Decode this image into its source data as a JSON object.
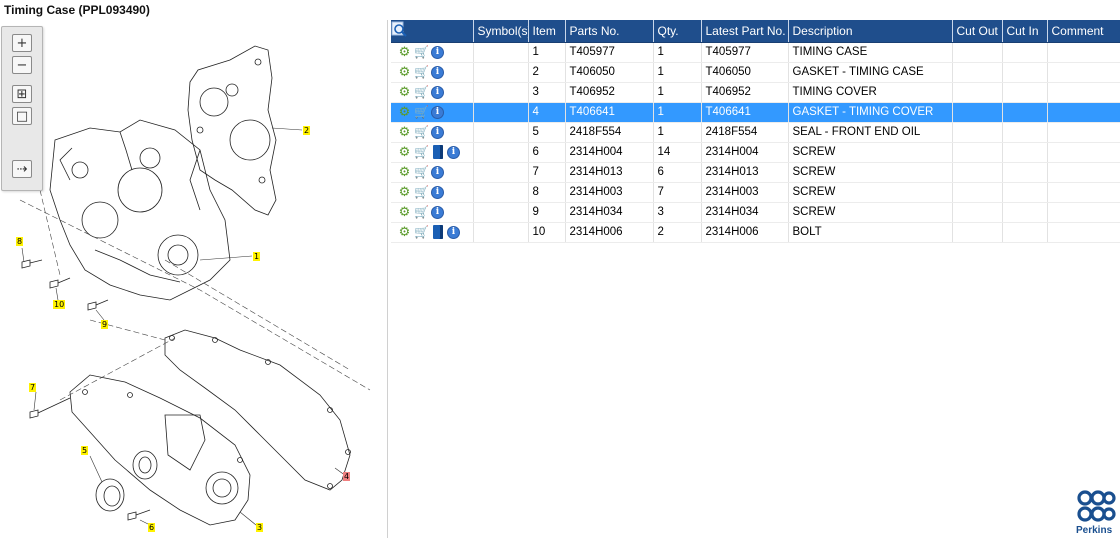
{
  "window": {
    "title": "Timing Case (PPL093490)"
  },
  "toolbar": {
    "buttons": [
      {
        "name": "zoom-in-icon",
        "glyph": "+"
      },
      {
        "name": "zoom-out-icon",
        "glyph": "−"
      },
      {
        "name": "fit-all-icon",
        "glyph": "⊞"
      },
      {
        "name": "actual-size-icon",
        "glyph": "□"
      },
      {
        "name": "list-view-icon",
        "glyph": "⇢"
      }
    ]
  },
  "diagram": {
    "callouts": [
      {
        "label": "2",
        "selected": false
      },
      {
        "label": "8",
        "selected": false
      },
      {
        "label": "1",
        "selected": false
      },
      {
        "label": "10",
        "selected": false
      },
      {
        "label": "9",
        "selected": false
      },
      {
        "label": "7",
        "selected": false
      },
      {
        "label": "5",
        "selected": false
      },
      {
        "label": "4",
        "selected": true
      },
      {
        "label": "6",
        "selected": false
      },
      {
        "label": "3",
        "selected": false
      }
    ]
  },
  "table": {
    "headers": {
      "symbols": "Symbol(s)",
      "item": "Item",
      "parts_no": "Parts No.",
      "qty": "Qty.",
      "latest_part_no": "Latest Part No.",
      "description": "Description",
      "cut_out": "Cut Out",
      "cut_in": "Cut In",
      "comment": "Comment"
    },
    "rows": [
      {
        "item": "1",
        "parts_no": "T405977",
        "qty": "1",
        "latest": "T405977",
        "description": "TIMING CASE",
        "book": false,
        "selected": false
      },
      {
        "item": "2",
        "parts_no": "T406050",
        "qty": "1",
        "latest": "T406050",
        "description": "GASKET - TIMING CASE",
        "book": false,
        "selected": false
      },
      {
        "item": "3",
        "parts_no": "T406952",
        "qty": "1",
        "latest": "T406952",
        "description": "TIMING COVER",
        "book": false,
        "selected": false
      },
      {
        "item": "4",
        "parts_no": "T406641",
        "qty": "1",
        "latest": "T406641",
        "description": "GASKET - TIMING COVER",
        "book": false,
        "selected": true
      },
      {
        "item": "5",
        "parts_no": "2418F554",
        "qty": "1",
        "latest": "2418F554",
        "description": "SEAL - FRONT END OIL",
        "book": false,
        "selected": false
      },
      {
        "item": "6",
        "parts_no": "2314H004",
        "qty": "14",
        "latest": "2314H004",
        "description": "SCREW",
        "book": true,
        "selected": false
      },
      {
        "item": "7",
        "parts_no": "2314H013",
        "qty": "6",
        "latest": "2314H013",
        "description": "SCREW",
        "book": false,
        "selected": false
      },
      {
        "item": "8",
        "parts_no": "2314H003",
        "qty": "7",
        "latest": "2314H003",
        "description": "SCREW",
        "book": false,
        "selected": false
      },
      {
        "item": "9",
        "parts_no": "2314H034",
        "qty": "3",
        "latest": "2314H034",
        "description": "SCREW",
        "book": false,
        "selected": false
      },
      {
        "item": "10",
        "parts_no": "2314H006",
        "qty": "2",
        "latest": "2314H006",
        "description": "BOLT",
        "book": true,
        "selected": false
      }
    ]
  },
  "logo": {
    "text": "Perkins",
    "color": "#1a4f8f"
  },
  "colors": {
    "header": "#1f4e8c",
    "selected_row": "#3399ff",
    "callout": "#fff200",
    "callout_selected": "#f08080"
  }
}
